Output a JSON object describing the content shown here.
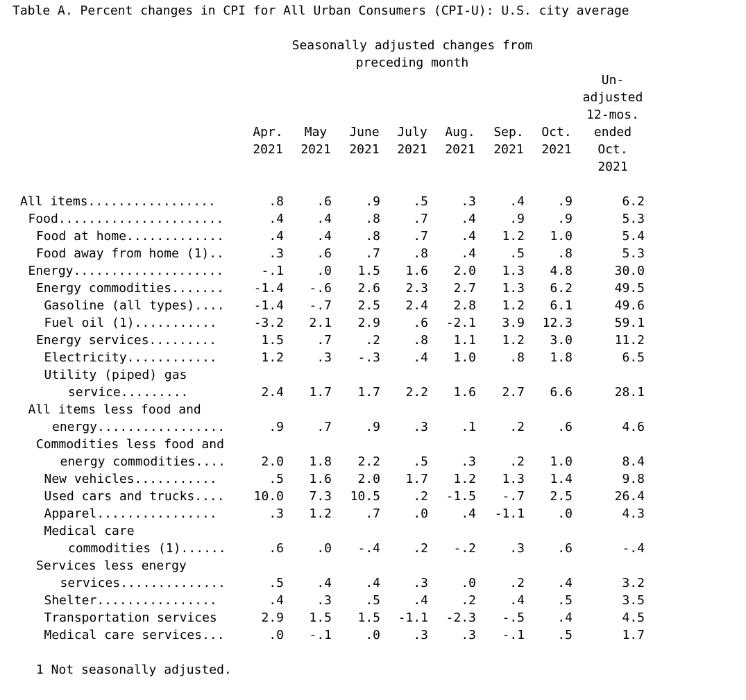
{
  "title": "Table A. Percent changes in CPI for All Urban Consumers (CPI-U): U.S. city average",
  "sa_header": [
    "Seasonally adjusted changes from",
    "preceding month"
  ],
  "unadjusted_header": [
    "Un-",
    "adjusted",
    "12-mos.",
    "ended",
    "Oct.",
    "2021"
  ],
  "columns": [
    {
      "month": "Apr.",
      "year": "2021"
    },
    {
      "month": "May",
      "year": "2021"
    },
    {
      "month": "June",
      "year": "2021"
    },
    {
      "month": "July",
      "year": "2021"
    },
    {
      "month": "Aug.",
      "year": "2021"
    },
    {
      "month": "Sep.",
      "year": "2021"
    },
    {
      "month": "Oct.",
      "year": "2021"
    }
  ],
  "rows": [
    {
      "label": "All items.................",
      "indent": 0,
      "values": [
        ".8",
        ".6",
        ".9",
        ".5",
        ".3",
        ".4",
        ".9",
        "6.2"
      ]
    },
    {
      "label": "Food......................",
      "indent": 1,
      "values": [
        ".4",
        ".4",
        ".8",
        ".7",
        ".4",
        ".9",
        ".9",
        "5.3"
      ]
    },
    {
      "label": "Food at home.............",
      "indent": 2,
      "values": [
        ".4",
        ".4",
        ".8",
        ".7",
        ".4",
        "1.2",
        "1.0",
        "5.4"
      ]
    },
    {
      "label": "Food away from home (1)..",
      "indent": 2,
      "values": [
        ".3",
        ".6",
        ".7",
        ".8",
        ".4",
        ".5",
        ".8",
        "5.3"
      ]
    },
    {
      "label": "Energy....................",
      "indent": 1,
      "values": [
        "-.1",
        ".0",
        "1.5",
        "1.6",
        "2.0",
        "1.3",
        "4.8",
        "30.0"
      ]
    },
    {
      "label": "Energy commodities.......",
      "indent": 2,
      "values": [
        "-1.4",
        "-.6",
        "2.6",
        "2.3",
        "2.7",
        "1.3",
        "6.2",
        "49.5"
      ]
    },
    {
      "label": "Gasoline (all types)....",
      "indent": 3,
      "values": [
        "-1.4",
        "-.7",
        "2.5",
        "2.4",
        "2.8",
        "1.2",
        "6.1",
        "49.6"
      ]
    },
    {
      "label": "Fuel oil (1)...........",
      "indent": 3,
      "values": [
        "-3.2",
        "2.1",
        "2.9",
        ".6",
        "-2.1",
        "3.9",
        "12.3",
        "59.1"
      ]
    },
    {
      "label": "Energy services.........",
      "indent": 2,
      "values": [
        "1.5",
        ".7",
        ".2",
        ".8",
        "1.1",
        "1.2",
        "3.0",
        "11.2"
      ]
    },
    {
      "label": "Electricity............",
      "indent": 3,
      "values": [
        "1.2",
        ".3",
        "-.3",
        ".4",
        "1.0",
        ".8",
        "1.8",
        "6.5"
      ]
    },
    {
      "label": "Utility (piped) gas",
      "indent": 3,
      "values": []
    },
    {
      "label": "service.........",
      "indent": 6,
      "values": [
        "2.4",
        "1.7",
        "1.7",
        "2.2",
        "1.6",
        "2.7",
        "6.6",
        "28.1"
      ]
    },
    {
      "label": "All items less food and",
      "indent": 1,
      "values": []
    },
    {
      "label": "energy.................",
      "indent": 4,
      "values": [
        ".9",
        ".7",
        ".9",
        ".3",
        ".1",
        ".2",
        ".6",
        "4.6"
      ]
    },
    {
      "label": "Commodities less food and",
      "indent": 2,
      "values": []
    },
    {
      "label": "energy commodities....",
      "indent": 5,
      "values": [
        "2.0",
        "1.8",
        "2.2",
        ".5",
        ".3",
        ".2",
        "1.0",
        "8.4"
      ]
    },
    {
      "label": "New vehicles...........",
      "indent": 3,
      "values": [
        ".5",
        "1.6",
        "2.0",
        "1.7",
        "1.2",
        "1.3",
        "1.4",
        "9.8"
      ]
    },
    {
      "label": "Used cars and trucks....",
      "indent": 3,
      "values": [
        "10.0",
        "7.3",
        "10.5",
        ".2",
        "-1.5",
        "-.7",
        "2.5",
        "26.4"
      ]
    },
    {
      "label": "Apparel................",
      "indent": 3,
      "values": [
        ".3",
        "1.2",
        ".7",
        ".0",
        ".4",
        "-1.1",
        ".0",
        "4.3"
      ]
    },
    {
      "label": "Medical care",
      "indent": 3,
      "values": []
    },
    {
      "label": "commodities (1)......",
      "indent": 6,
      "values": [
        ".6",
        ".0",
        "-.4",
        ".2",
        "-.2",
        ".3",
        ".6",
        "-.4"
      ]
    },
    {
      "label": "Services less energy",
      "indent": 2,
      "values": []
    },
    {
      "label": "services..............",
      "indent": 5,
      "values": [
        ".5",
        ".4",
        ".4",
        ".3",
        ".0",
        ".2",
        ".4",
        "3.2"
      ]
    },
    {
      "label": "Shelter................",
      "indent": 3,
      "values": [
        ".4",
        ".3",
        ".5",
        ".4",
        ".2",
        ".4",
        ".5",
        "3.5"
      ]
    },
    {
      "label": "Transportation services",
      "indent": 3,
      "values": [
        "2.9",
        "1.5",
        "1.5",
        "-1.1",
        "-2.3",
        "-.5",
        ".4",
        "4.5"
      ]
    },
    {
      "label": "Medical care services...",
      "indent": 3,
      "values": [
        ".0",
        "-.1",
        ".0",
        ".3",
        ".3",
        "-.1",
        ".5",
        "1.7"
      ]
    }
  ],
  "footnote": "1 Not seasonally adjusted."
}
